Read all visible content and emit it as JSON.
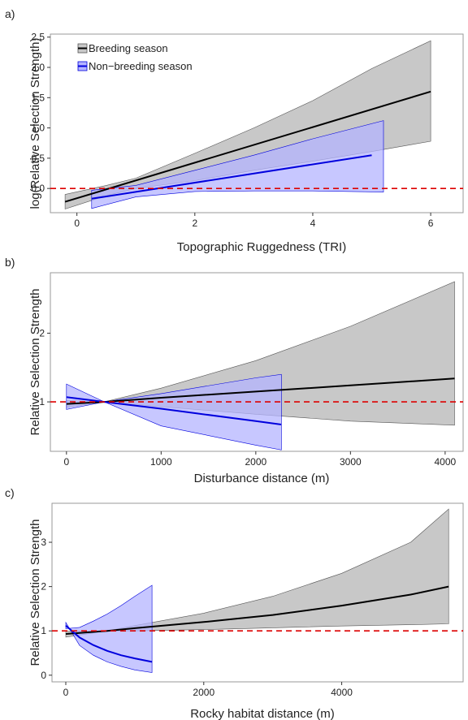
{
  "colors": {
    "breeding": "#000000",
    "breeding_band": "#c8c8c8",
    "nonbreeding": "#0000dd",
    "nonbreeding_band": "#b4b4ff",
    "reference": "#dd0000",
    "panel_border": "#999999"
  },
  "panel_labels": [
    "a)",
    "b)",
    "c)"
  ],
  "chart_data": [
    {
      "type": "line",
      "xlabel": "Topographic Ruggedness (TRI)",
      "ylabel": "log(Relative Selection Strength)",
      "xlim": [
        -0.45,
        6.55
      ],
      "ylim": [
        -0.4,
        2.55
      ],
      "xticks": [
        0,
        2,
        4,
        6
      ],
      "yticks": [
        0.0,
        0.5,
        1.0,
        1.5,
        2.0,
        2.5
      ],
      "ytick_labels": [
        "0.0",
        "0.5",
        "1.0",
        "1.5",
        "2.0",
        "2.5"
      ],
      "reference_y": 0,
      "legend": {
        "position": "top-left",
        "entries": [
          "Breeding season",
          "Non−breeding season"
        ]
      },
      "series": [
        {
          "name": "Breeding season",
          "color_key": "breeding",
          "x": [
            -0.2,
            6.0
          ],
          "y": [
            -0.22,
            1.6
          ],
          "band_x": [
            -0.2,
            0.5,
            1.0,
            2.0,
            3.0,
            4.0,
            5.0,
            6.0
          ],
          "band_lower": [
            -0.34,
            -0.12,
            0.0,
            0.13,
            0.3,
            0.45,
            0.61,
            0.78
          ],
          "band_upper": [
            -0.1,
            0.05,
            0.17,
            0.58,
            1.0,
            1.45,
            1.98,
            2.44
          ]
        },
        {
          "name": "Non−breeding season",
          "color_key": "nonbreeding",
          "x": [
            0.25,
            5.0
          ],
          "y": [
            -0.17,
            0.55
          ],
          "band_x": [
            0.25,
            1.0,
            2.0,
            3.0,
            4.0,
            5.2
          ],
          "band_lower": [
            -0.33,
            -0.14,
            -0.05,
            -0.04,
            -0.04,
            -0.06
          ],
          "band_upper": [
            -0.03,
            0.05,
            0.3,
            0.55,
            0.82,
            1.12
          ]
        }
      ]
    },
    {
      "type": "line",
      "xlabel": "Disturbance distance (m)",
      "ylabel": "Relative Selection Strength",
      "xlim": [
        -170,
        4190
      ],
      "ylim": [
        0.28,
        2.88
      ],
      "xticks": [
        0,
        1000,
        2000,
        3000,
        4000
      ],
      "yticks": [
        1,
        2
      ],
      "ytick_labels": [
        "1",
        "2"
      ],
      "reference_y": 1,
      "series": [
        {
          "name": "Breeding season",
          "color_key": "breeding",
          "x": [
            0,
            400,
            1000,
            2000,
            3000,
            4100
          ],
          "y": [
            0.97,
            1.0,
            1.06,
            1.15,
            1.24,
            1.34
          ],
          "band_x": [
            0,
            400,
            1000,
            2000,
            3000,
            4100
          ],
          "band_lower": [
            0.92,
            1.0,
            0.93,
            0.82,
            0.72,
            0.66
          ],
          "band_upper": [
            1.02,
            1.0,
            1.2,
            1.6,
            2.1,
            2.75
          ]
        },
        {
          "name": "Non−breeding season",
          "color_key": "nonbreeding",
          "x": [
            0,
            400,
            1000,
            2000,
            2270
          ],
          "y": [
            1.07,
            1.0,
            0.9,
            0.72,
            0.67
          ],
          "band_x": [
            0,
            400,
            1000,
            2000,
            2270
          ],
          "band_lower": [
            0.89,
            1.0,
            0.65,
            0.37,
            0.3
          ],
          "band_upper": [
            1.26,
            1.0,
            1.12,
            1.35,
            1.4
          ]
        }
      ]
    },
    {
      "type": "line",
      "xlabel": "Rocky habitat distance (m)",
      "ylabel": "Relative Selection Strength",
      "xlim": [
        -200,
        5760
      ],
      "ylim": [
        -0.15,
        3.88
      ],
      "xticks": [
        0,
        2000,
        4000
      ],
      "yticks": [
        0,
        1,
        2,
        3
      ],
      "ytick_labels": [
        "0",
        "1",
        "2",
        "3"
      ],
      "reference_y": 1,
      "series": [
        {
          "name": "Breeding season",
          "color_key": "breeding",
          "x": [
            0,
            600,
            1000,
            2000,
            3000,
            4000,
            5000,
            5550
          ],
          "y": [
            0.93,
            1.0,
            1.06,
            1.2,
            1.36,
            1.57,
            1.82,
            2.0
          ],
          "band_x": [
            0,
            600,
            1000,
            2000,
            3000,
            4000,
            5000,
            5550
          ],
          "band_lower": [
            0.86,
            1.0,
            1.0,
            1.03,
            1.07,
            1.11,
            1.14,
            1.16
          ],
          "band_upper": [
            0.99,
            1.0,
            1.12,
            1.4,
            1.78,
            2.3,
            3.0,
            3.75
          ]
        },
        {
          "name": "Non−breeding season",
          "color_key": "nonbreeding",
          "x": [
            0,
            200,
            400,
            600,
            800,
            1000,
            1250
          ],
          "y": [
            1.12,
            0.85,
            0.68,
            0.55,
            0.45,
            0.38,
            0.3
          ],
          "band_x": [
            0,
            200,
            400,
            600,
            800,
            1000,
            1250
          ],
          "band_lower": [
            1.19,
            0.67,
            0.45,
            0.3,
            0.2,
            0.12,
            0.06
          ],
          "band_upper": [
            1.05,
            1.08,
            1.22,
            1.38,
            1.57,
            1.78,
            2.03
          ]
        }
      ]
    }
  ]
}
